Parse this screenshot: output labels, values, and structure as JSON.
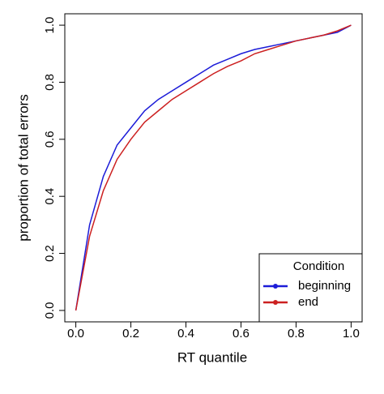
{
  "chart_data": {
    "type": "line",
    "x_label": "RT quantile",
    "y_label": "proportion of total errors",
    "x": [
      0,
      0.05,
      0.1,
      0.15,
      0.2,
      0.25,
      0.3,
      0.35,
      0.4,
      0.45,
      0.5,
      0.55,
      0.6,
      0.65,
      0.7,
      0.75,
      0.8,
      0.85,
      0.9,
      0.95,
      1
    ],
    "series": [
      {
        "name": "beginning",
        "color": "#1c1cd8",
        "values": [
          0,
          0.3,
          0.47,
          0.58,
          0.64,
          0.7,
          0.74,
          0.77,
          0.8,
          0.83,
          0.86,
          0.88,
          0.9,
          0.915,
          0.925,
          0.935,
          0.945,
          0.955,
          0.965,
          0.975,
          1
        ]
      },
      {
        "name": "end",
        "color": "#cc2020",
        "values": [
          0,
          0.26,
          0.42,
          0.53,
          0.6,
          0.66,
          0.7,
          0.74,
          0.77,
          0.8,
          0.83,
          0.855,
          0.875,
          0.9,
          0.915,
          0.93,
          0.945,
          0.955,
          0.965,
          0.98,
          1
        ]
      }
    ],
    "xlim": [
      -0.04,
      1.04
    ],
    "ylim": [
      -0.04,
      1.04
    ],
    "xticks": [
      {
        "value": 0,
        "label": "0.0"
      },
      0.2,
      0.4,
      0.6,
      0.8,
      {
        "value": 1,
        "label": "1.0"
      }
    ],
    "yticks": [
      {
        "value": 0,
        "label": "0.0"
      },
      0.2,
      0.4,
      0.6,
      0.8,
      {
        "value": 1,
        "label": "1.0"
      }
    ],
    "legend_title": "Condition",
    "legend_corner": "bottom-right",
    "grid": false
  }
}
